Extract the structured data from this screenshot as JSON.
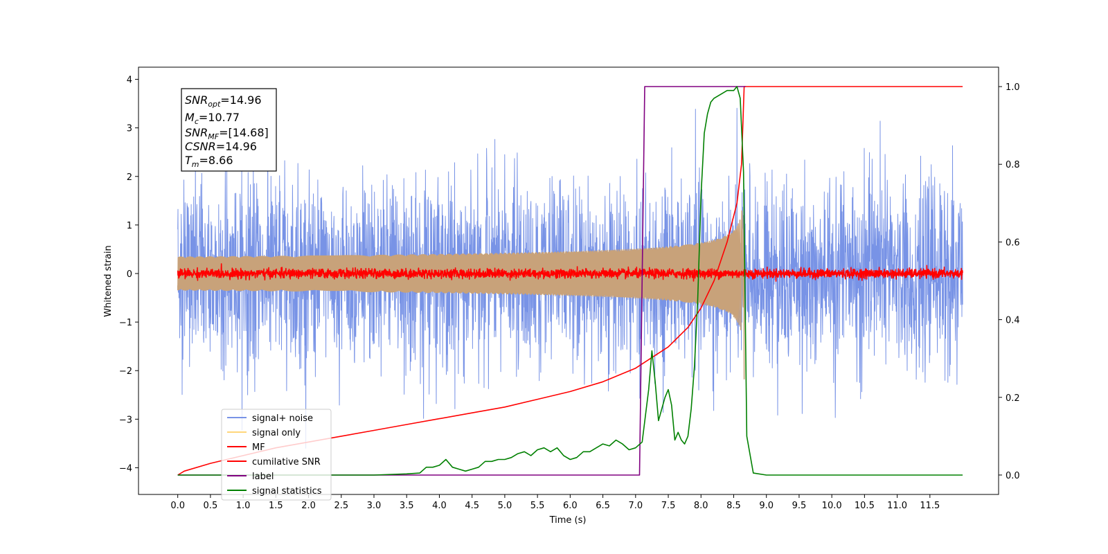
{
  "chart_data": {
    "type": "line",
    "xlabel": "Time (s)",
    "ylabel": "Whitened strain",
    "xlim": [
      -0.6,
      12.55
    ],
    "ylim": [
      -4.55,
      4.25
    ],
    "ylim_right": [
      -0.05,
      1.05
    ],
    "x_ticks": [
      "0.0",
      "0.5",
      "1.0",
      "1.5",
      "2.0",
      "2.5",
      "3.0",
      "3.5",
      "4.0",
      "4.5",
      "5.0",
      "5.5",
      "6.0",
      "6.5",
      "7.0",
      "7.5",
      "8.0",
      "8.5",
      "9.0",
      "9.5",
      "10.0",
      "10.5",
      "11.0",
      "11.5"
    ],
    "y_ticks_left": [
      "4",
      "3",
      "2",
      "1",
      "0",
      "−1",
      "−2",
      "−3",
      "−4"
    ],
    "y_ticks_right": [
      "1.0",
      "0.8",
      "0.6",
      "0.4",
      "0.2",
      "0.0"
    ],
    "grid": false,
    "legend_position": "lower-left",
    "legend": [
      {
        "label": "signal+ noise",
        "color": "#7893e6"
      },
      {
        "label": "signal only",
        "color": "#ffd67a"
      },
      {
        "label": "MF",
        "color": "#ff0000"
      },
      {
        "label": "cumilative SNR",
        "color": "#ff0000"
      },
      {
        "label": "label",
        "color": "#800080"
      },
      {
        "label": "signal statistics",
        "color": "#008000"
      }
    ],
    "stats": [
      {
        "base": "SNR",
        "sub": "opt",
        "value": "=14.96"
      },
      {
        "base": "M",
        "sub": "c",
        "value": "=10.77"
      },
      {
        "base": "SNR",
        "sub": "MF",
        "value": "=[14.68]"
      },
      {
        "base": "CSNR",
        "sub": "",
        "value": "=14.96"
      },
      {
        "base": "T",
        "sub": "m",
        "value": "=8.66"
      }
    ],
    "series": [
      {
        "name": "signal+ noise",
        "axis": "left",
        "style": "noise",
        "x_range": [
          0.0,
          12.0
        ],
        "amplitude": 3.5,
        "color": "#7893e6"
      },
      {
        "name": "signal only",
        "axis": "left",
        "style": "chirp",
        "x_range": [
          0.0,
          8.66
        ],
        "amplitude_end": 2.3,
        "color": "#c8a27a"
      },
      {
        "name": "MF",
        "axis": "left",
        "style": "noise",
        "x_range": [
          0.0,
          12.0
        ],
        "amplitude": 0.15,
        "color": "#ff0000"
      },
      {
        "name": "cumilative SNR",
        "axis": "right",
        "x": [
          0.0,
          0.1,
          0.5,
          1.0,
          1.5,
          2.0,
          2.5,
          3.0,
          3.5,
          4.0,
          4.5,
          5.0,
          5.5,
          6.0,
          6.5,
          7.0,
          7.5,
          7.8,
          8.0,
          8.2,
          8.4,
          8.55,
          8.62,
          8.66,
          9.0,
          10.0,
          11.0,
          12.0
        ],
        "y": [
          0.0,
          0.01,
          0.03,
          0.05,
          0.07,
          0.085,
          0.1,
          0.115,
          0.13,
          0.145,
          0.16,
          0.175,
          0.195,
          0.215,
          0.24,
          0.275,
          0.33,
          0.38,
          0.43,
          0.5,
          0.6,
          0.7,
          0.8,
          1.0,
          1.0,
          1.0,
          1.0,
          1.0
        ],
        "color": "#ff0000"
      },
      {
        "name": "label",
        "axis": "right",
        "x": [
          0.0,
          7.06,
          7.14,
          8.6,
          8.62,
          8.66,
          8.68
        ],
        "y": [
          0.0,
          0.0,
          1.0,
          1.0,
          1.0,
          1.0,
          1.0
        ],
        "color": "#800080"
      },
      {
        "name": "signal statistics",
        "axis": "right",
        "x": [
          0.0,
          1.0,
          2.0,
          3.0,
          3.5,
          3.7,
          3.8,
          3.9,
          4.0,
          4.1,
          4.2,
          4.3,
          4.4,
          4.5,
          4.6,
          4.7,
          4.8,
          4.9,
          5.0,
          5.1,
          5.2,
          5.3,
          5.4,
          5.5,
          5.6,
          5.7,
          5.8,
          5.9,
          6.0,
          6.1,
          6.2,
          6.3,
          6.4,
          6.5,
          6.6,
          6.7,
          6.8,
          6.9,
          7.0,
          7.1,
          7.2,
          7.25,
          7.3,
          7.35,
          7.45,
          7.5,
          7.55,
          7.6,
          7.65,
          7.7,
          7.75,
          7.8,
          7.85,
          7.9,
          7.95,
          8.0,
          8.05,
          8.1,
          8.15,
          8.2,
          8.3,
          8.4,
          8.5,
          8.55,
          8.6,
          8.65,
          8.7,
          8.8,
          9.0,
          10.0,
          11.0,
          12.0
        ],
        "y": [
          0.0,
          0.0,
          0.0,
          0.0,
          0.003,
          0.005,
          0.02,
          0.02,
          0.025,
          0.04,
          0.02,
          0.015,
          0.01,
          0.015,
          0.02,
          0.035,
          0.035,
          0.04,
          0.04,
          0.045,
          0.055,
          0.06,
          0.05,
          0.065,
          0.07,
          0.06,
          0.07,
          0.05,
          0.04,
          0.045,
          0.06,
          0.06,
          0.07,
          0.08,
          0.075,
          0.09,
          0.08,
          0.065,
          0.07,
          0.085,
          0.22,
          0.32,
          0.24,
          0.14,
          0.2,
          0.22,
          0.18,
          0.09,
          0.11,
          0.09,
          0.08,
          0.1,
          0.17,
          0.28,
          0.45,
          0.72,
          0.88,
          0.93,
          0.96,
          0.97,
          0.98,
          0.99,
          0.99,
          1.0,
          0.97,
          0.78,
          0.1,
          0.005,
          0.0,
          0.0,
          0.0,
          0.0
        ],
        "color": "#008000"
      }
    ]
  }
}
